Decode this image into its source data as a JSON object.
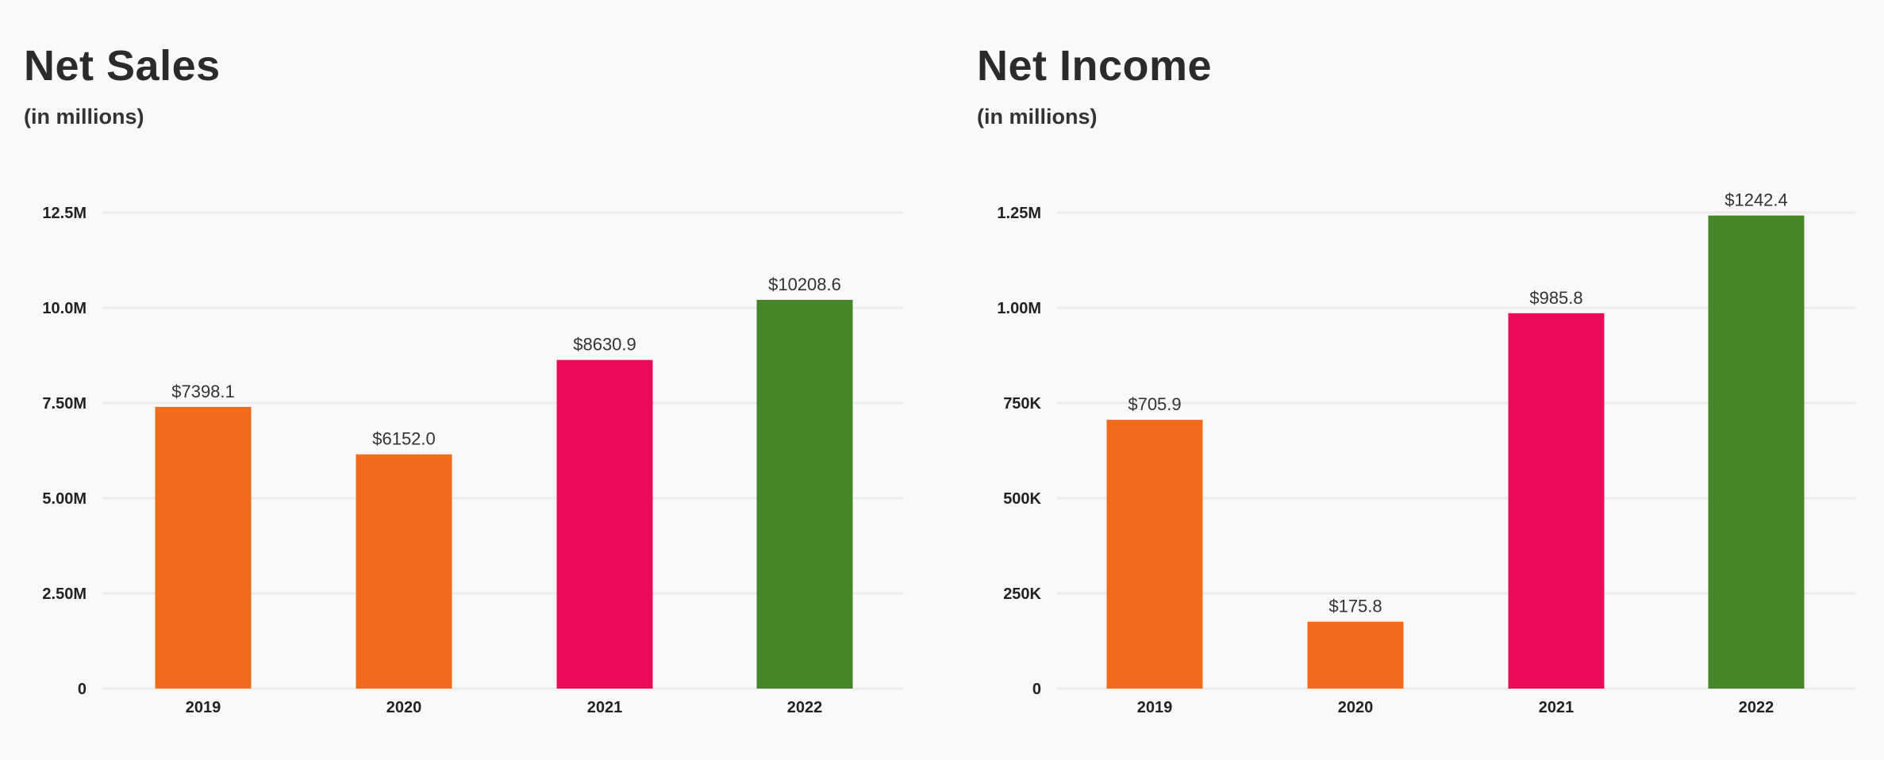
{
  "chart_data": [
    {
      "type": "bar",
      "title": "Net Sales",
      "subtitle": "(in millions)",
      "categories": [
        "2019",
        "2020",
        "2021",
        "2022"
      ],
      "values": [
        7398.1,
        6152.0,
        8630.9,
        10208.6
      ],
      "data_labels": [
        "$7398.1",
        "$6152.0",
        "$8630.9",
        "$10208.6"
      ],
      "colors": [
        "#F26B1D",
        "#F26B1D",
        "#E90B5A",
        "#46852A"
      ],
      "ylim": [
        0,
        12500
      ],
      "yticks": [
        0,
        2500,
        5000,
        7500,
        10000,
        12500
      ],
      "ytick_labels": [
        "0",
        "2.50M",
        "5.00M",
        "7.50M",
        "10.0M",
        "12.5M"
      ],
      "grid": true,
      "xlabel": "",
      "ylabel": ""
    },
    {
      "type": "bar",
      "title": "Net Income",
      "subtitle": "(in millions)",
      "categories": [
        "2019",
        "2020",
        "2021",
        "2022"
      ],
      "values": [
        705.9,
        175.8,
        985.8,
        1242.4
      ],
      "data_labels": [
        "$705.9",
        "$175.8",
        "$985.8",
        "$1242.4"
      ],
      "colors": [
        "#F26B1D",
        "#F26B1D",
        "#E90B5A",
        "#46852A"
      ],
      "ylim": [
        0,
        1250
      ],
      "yticks": [
        0,
        250,
        500,
        750,
        1000,
        1250
      ],
      "ytick_labels": [
        "0",
        "250K",
        "500K",
        "750K",
        "1.00M",
        "1.25M"
      ],
      "grid": true,
      "xlabel": "",
      "ylabel": ""
    }
  ]
}
